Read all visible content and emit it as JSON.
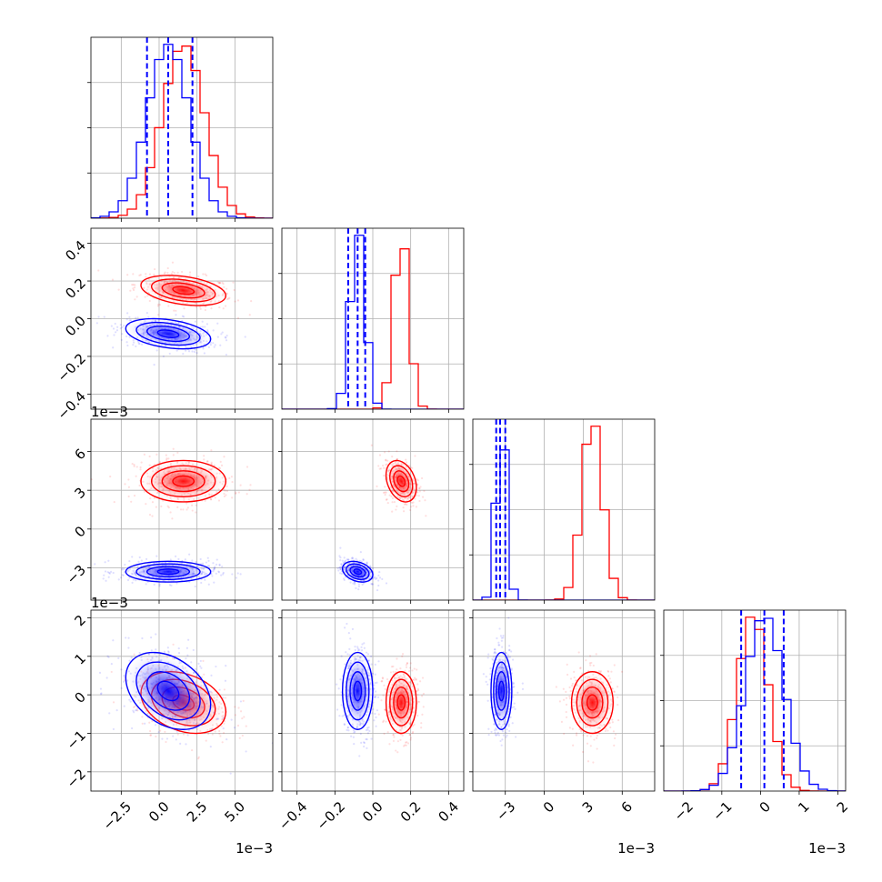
{
  "chart_data": {
    "type": "corner",
    "colors": {
      "series_a": "#0000ff",
      "series_b": "#ff0000"
    },
    "series": [
      {
        "color": "#0000ff"
      },
      {
        "color": "#ff0000"
      }
    ],
    "grid": true,
    "dimensions": [
      {
        "range": [
          -0.0045,
          0.0075
        ],
        "ticks": [
          -0.0025,
          0.0,
          0.0025,
          0.005
        ],
        "tick_labels": [
          "−2.5",
          "0.0",
          "2.5",
          "5.0"
        ],
        "offset_text": "1e−3",
        "mean": [
          0.0006,
          0.0016
        ],
        "sd": [
          0.0014,
          0.0014
        ],
        "quantiles_blue": [
          -0.0008,
          0.0006,
          0.0022
        ]
      },
      {
        "range": [
          -0.48,
          0.48
        ],
        "ticks": [
          -0.4,
          -0.2,
          0.0,
          0.2,
          0.4
        ],
        "tick_labels": [
          "−0.4",
          "−0.2",
          "0.0",
          "0.2",
          "0.4"
        ],
        "offset_text": "",
        "mean": [
          -0.08,
          0.15
        ],
        "sd": [
          0.04,
          0.04
        ],
        "quantiles_blue": [
          -0.13,
          -0.08,
          -0.04
        ]
      },
      {
        "range": [
          -0.0055,
          0.0085
        ],
        "ticks": [
          -0.003,
          0.0,
          0.003,
          0.006
        ],
        "tick_labels": [
          "−3",
          "0",
          "3",
          "6"
        ],
        "offset_text": "1e−3",
        "mean": [
          -0.0033,
          0.0037
        ],
        "sd": [
          0.0004,
          0.0008
        ],
        "quantiles_blue": [
          -0.0037,
          -0.0034,
          -0.003
        ]
      },
      {
        "range": [
          -0.0025,
          0.0022
        ],
        "ticks": [
          -0.002,
          -0.001,
          0.0,
          0.001,
          0.002
        ],
        "tick_labels": [
          "−2",
          "−1",
          "0",
          "1",
          "2"
        ],
        "offset_text": "1e−3",
        "mean": [
          0.0001,
          -0.0002
        ],
        "sd": [
          0.0005,
          0.0004
        ],
        "quantiles_blue": [
          -0.0005,
          0.0001,
          0.0006
        ]
      }
    ],
    "correlations": {
      "1-0": [
        -0.35,
        -0.35
      ],
      "2-0": [
        0.0,
        0.0
      ],
      "2-1": [
        -0.3,
        -0.3
      ],
      "3-0": [
        -0.35,
        -0.3
      ],
      "3-1": [
        0.0,
        0.0
      ],
      "3-2": [
        0.0,
        0.0
      ]
    }
  }
}
